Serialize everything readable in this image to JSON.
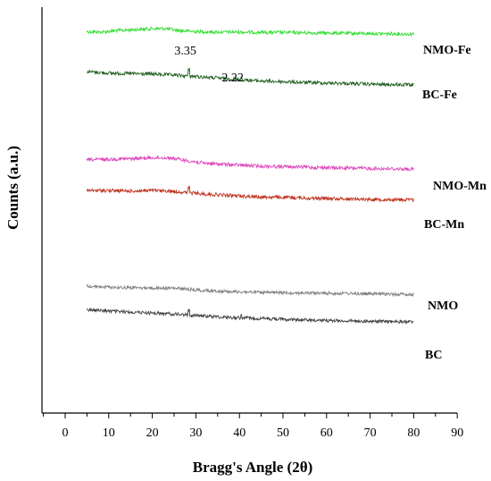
{
  "chart_data": {
    "type": "line",
    "xlabel": "Bragg's Angle (2θ)",
    "ylabel": "Counts (a.u.)",
    "xlim": [
      -5,
      90
    ],
    "x_ticks": [
      "0",
      "10",
      "20",
      "30",
      "40",
      "50",
      "60",
      "70",
      "80",
      "90"
    ],
    "grid": false,
    "legend": "series labels at right end of each trace",
    "y_ticks_shown": false,
    "series": [
      {
        "name": "NMO-Fe",
        "color": "#33dd33",
        "noise": 1.6,
        "points": [
          [
            5,
            86
          ],
          [
            8,
            87
          ],
          [
            12,
            84
          ],
          [
            16,
            82
          ],
          [
            20,
            80
          ],
          [
            23,
            80
          ],
          [
            26,
            84
          ],
          [
            30,
            86
          ],
          [
            35,
            87
          ],
          [
            40,
            87
          ],
          [
            50,
            88
          ],
          [
            60,
            89
          ],
          [
            70,
            90
          ],
          [
            80,
            91
          ]
        ]
      },
      {
        "name": "BC-Fe",
        "color": "#1f5f1f",
        "noise": 1.6,
        "points": [
          [
            5,
            73
          ],
          [
            10,
            76
          ],
          [
            15,
            77
          ],
          [
            20,
            78
          ],
          [
            25,
            80
          ],
          [
            28,
            82
          ],
          [
            32,
            84
          ],
          [
            38,
            88
          ],
          [
            45,
            92
          ],
          [
            55,
            95
          ],
          [
            65,
            97
          ],
          [
            72,
            99
          ],
          [
            80,
            100
          ]
        ]
      },
      {
        "name": "NMO-Mn",
        "color": "#dd44bb",
        "noise": 1.6,
        "points": [
          [
            5,
            74
          ],
          [
            10,
            73
          ],
          [
            15,
            72
          ],
          [
            20,
            70
          ],
          [
            24,
            70
          ],
          [
            28,
            76
          ],
          [
            32,
            81
          ],
          [
            38,
            84
          ],
          [
            45,
            87
          ],
          [
            55,
            89
          ],
          [
            65,
            91
          ],
          [
            72,
            92
          ],
          [
            80,
            93
          ]
        ]
      },
      {
        "name": "BC-Mn",
        "color": "#c0301c",
        "noise": 1.6,
        "points": [
          [
            5,
            73
          ],
          [
            10,
            73
          ],
          [
            15,
            74
          ],
          [
            20,
            73
          ],
          [
            24,
            74
          ],
          [
            28,
            77
          ],
          [
            32,
            80
          ],
          [
            38,
            83
          ],
          [
            45,
            86
          ],
          [
            55,
            88
          ],
          [
            65,
            90
          ],
          [
            72,
            91
          ],
          [
            80,
            92
          ]
        ]
      },
      {
        "name": "NMO",
        "color": "#808080",
        "noise": 1.5,
        "points": [
          [
            5,
            80
          ],
          [
            10,
            82
          ],
          [
            15,
            83
          ],
          [
            20,
            84
          ],
          [
            24,
            84
          ],
          [
            28,
            86
          ],
          [
            32,
            89
          ],
          [
            38,
            91
          ],
          [
            45,
            93
          ],
          [
            55,
            94
          ],
          [
            65,
            95
          ],
          [
            72,
            96
          ],
          [
            80,
            97
          ]
        ]
      },
      {
        "name": "BC",
        "color": "#404040",
        "noise": 1.5,
        "points": [
          [
            5,
            66
          ],
          [
            10,
            69
          ],
          [
            15,
            71
          ],
          [
            20,
            73
          ],
          [
            25,
            75
          ],
          [
            28,
            77
          ],
          [
            32,
            79
          ],
          [
            38,
            82
          ],
          [
            45,
            84
          ],
          [
            55,
            87
          ],
          [
            65,
            89
          ],
          [
            72,
            90
          ],
          [
            80,
            91
          ]
        ]
      }
    ],
    "peaks": [
      {
        "series": "BC-Fe",
        "x": 28.4,
        "height": 15
      },
      {
        "series": "BC-Mn",
        "x": 28.4,
        "height": 11
      },
      {
        "series": "BC",
        "x": 28.4,
        "height": 11
      },
      {
        "series": "BC-Fe",
        "x": 40.5,
        "height": 4
      },
      {
        "series": "BC",
        "x": 40.5,
        "height": 5
      }
    ],
    "annotations": [
      {
        "text": "3.35",
        "x": 28.4
      },
      {
        "text": "2.22",
        "x": 40.5
      }
    ]
  }
}
